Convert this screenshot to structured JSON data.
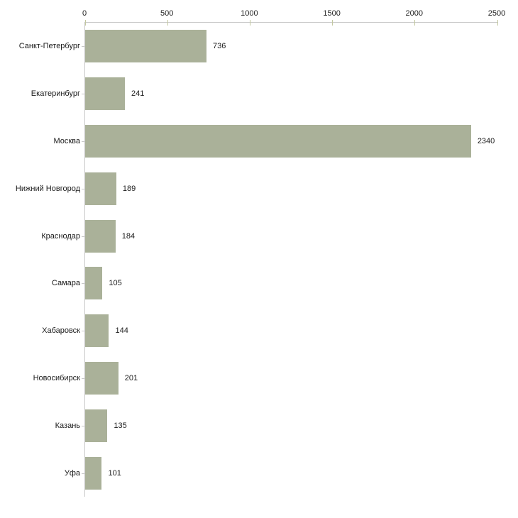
{
  "chart_data": {
    "type": "bar",
    "orientation": "horizontal",
    "title": "",
    "xlabel": "",
    "ylabel": "",
    "categories": [
      "Санкт-Петербург",
      "Екатеринбург",
      "Москва",
      "Нижний Новгород",
      "Краснодар",
      "Самара",
      "Хабаровск",
      "Новосибирск",
      "Казань",
      "Уфа"
    ],
    "values": [
      736,
      241,
      2340,
      189,
      184,
      105,
      144,
      201,
      135,
      101
    ],
    "value_labels": [
      "736",
      "241",
      "2340",
      "189",
      "184",
      "105",
      "144",
      "201",
      "135",
      "101"
    ],
    "x_axis": {
      "position": "top",
      "min": 0,
      "max": 2500,
      "ticks": [
        0,
        500,
        1000,
        1500,
        2000,
        2500
      ],
      "tick_labels": [
        "0",
        "500",
        "1000",
        "1500",
        "2000",
        "2500"
      ]
    },
    "grid": false,
    "legend": null,
    "colors": {
      "bar_fill": "#aab199",
      "axis_line": "#c8c8c8",
      "x_tick_mark": "#c3c8a0",
      "y_tick_mark": "#c8c8c8",
      "text": "#1a1a1a",
      "background": "#ffffff"
    }
  }
}
